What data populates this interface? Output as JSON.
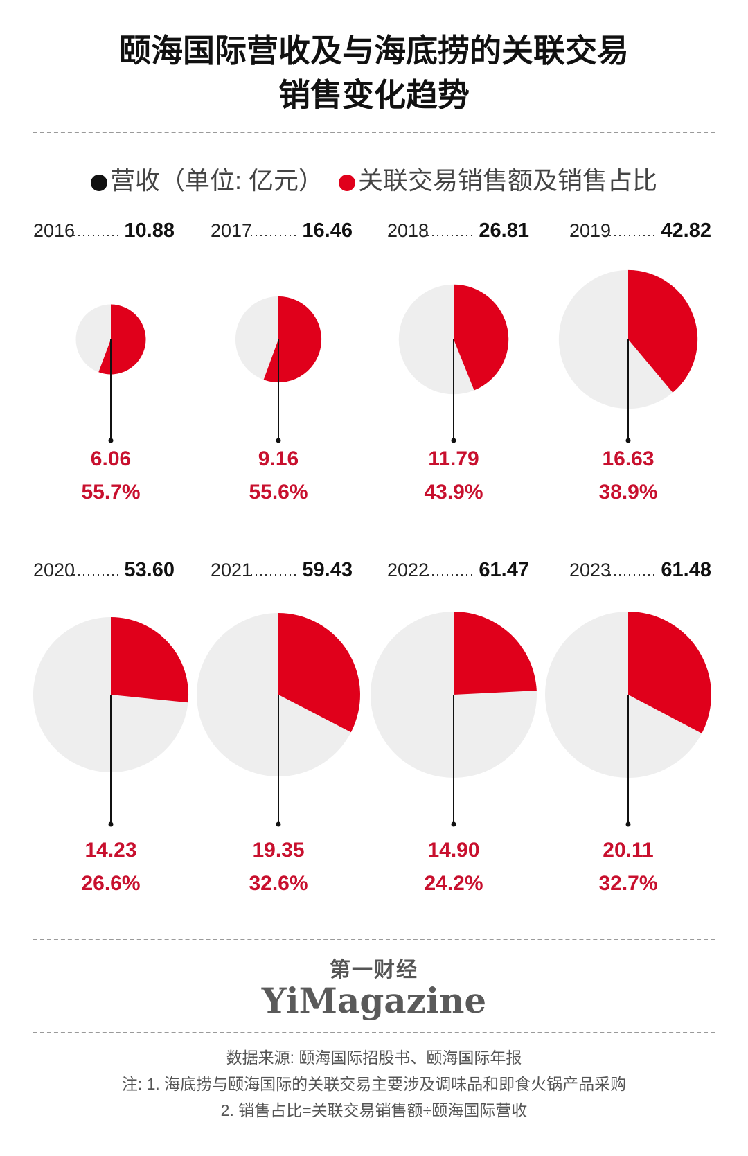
{
  "title_line1": "颐海国际营收及与海底捞的关联交易",
  "title_line2": "销售变化趋势",
  "legend": {
    "revenue_label": "营收（单位: 亿元）",
    "related_label": "关联交易销售额及销售占比"
  },
  "colors": {
    "red": "#e0001b",
    "grey": "#eeeeee",
    "black": "#111111",
    "value_red": "#c8102e"
  },
  "chart_data": {
    "type": "pie",
    "unit": "亿元",
    "items": [
      {
        "year": "2016",
        "revenue": "10.88",
        "related": "6.06",
        "share": "55.7%",
        "share_value": 55.7
      },
      {
        "year": "2017",
        "revenue": "16.46",
        "related": "9.16",
        "share": "55.6%",
        "share_value": 55.6
      },
      {
        "year": "2018",
        "revenue": "26.81",
        "related": "11.79",
        "share": "43.9%",
        "share_value": 43.9
      },
      {
        "year": "2019",
        "revenue": "42.82",
        "related": "16.63",
        "share": "38.9%",
        "share_value": 38.9
      },
      {
        "year": "2020",
        "revenue": "53.60",
        "related": "14.23",
        "share": "26.6%",
        "share_value": 26.6
      },
      {
        "year": "2021",
        "revenue": "59.43",
        "related": "19.35",
        "share": "32.6%",
        "share_value": 32.6
      },
      {
        "year": "2022",
        "revenue": "61.47",
        "related": "14.90",
        "share": "24.2%",
        "share_value": 24.2
      },
      {
        "year": "2023",
        "revenue": "61.48",
        "related": "20.11",
        "share": "32.7%",
        "share_value": 32.7
      }
    ]
  },
  "brand": {
    "cn": "第一财经",
    "en": "YiMagazine"
  },
  "notes": {
    "source": "数据来源: 颐海国际招股书、颐海国际年报",
    "note1": "注: 1. 海底捞与颐海国际的关联交易主要涉及调味品和即食火锅产品采购",
    "note2": "2. 销售占比=关联交易销售额÷颐海国际营收"
  }
}
